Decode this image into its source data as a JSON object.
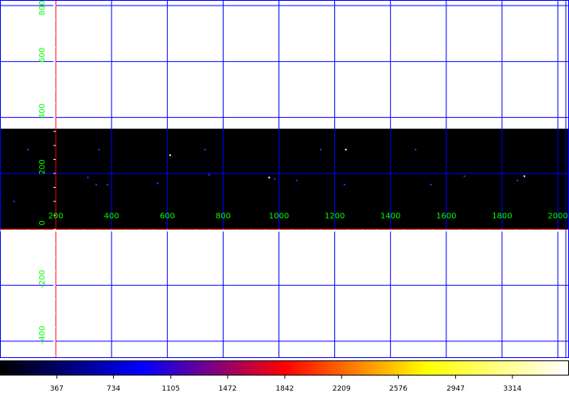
{
  "image": {
    "x_range": [
      0,
      2040
    ],
    "y_range": [
      -460,
      820
    ],
    "data_band": [
      0,
      360
    ]
  },
  "x_grid_values": [
    0,
    200,
    400,
    600,
    800,
    1000,
    1200,
    1400,
    1600,
    1800,
    2000
  ],
  "x_tick_labels": [
    "200",
    "400",
    "600",
    "800",
    "1000",
    "1200",
    "1400",
    "1600",
    "1800",
    "2000"
  ],
  "y_grid_values": [
    -400,
    -200,
    0,
    200,
    400,
    600,
    800
  ],
  "y_tick_labels": [
    "-400",
    "-200",
    "0",
    "200",
    "400",
    "600",
    "800"
  ],
  "stars": [
    {
      "x": 50,
      "y": 100,
      "v": 800
    },
    {
      "x": 100,
      "y": 285,
      "v": 900
    },
    {
      "x": 315,
      "y": 185,
      "v": 700
    },
    {
      "x": 345,
      "y": 160,
      "v": 900
    },
    {
      "x": 385,
      "y": 160,
      "v": 700
    },
    {
      "x": 355,
      "y": 285,
      "v": 500
    },
    {
      "x": 565,
      "y": 165,
      "v": 600
    },
    {
      "x": 610,
      "y": 265,
      "v": 2800
    },
    {
      "x": 735,
      "y": 285,
      "v": 400
    },
    {
      "x": 750,
      "y": 195,
      "v": 500
    },
    {
      "x": 965,
      "y": 185,
      "v": 3500
    },
    {
      "x": 985,
      "y": 180,
      "v": 500
    },
    {
      "x": 1065,
      "y": 175,
      "v": 400
    },
    {
      "x": 1150,
      "y": 285,
      "v": 400
    },
    {
      "x": 1235,
      "y": 160,
      "v": 500
    },
    {
      "x": 1240,
      "y": 285,
      "v": 2600
    },
    {
      "x": 1490,
      "y": 285,
      "v": 700
    },
    {
      "x": 1545,
      "y": 160,
      "v": 400
    },
    {
      "x": 1665,
      "y": 190,
      "v": 900
    },
    {
      "x": 1855,
      "y": 175,
      "v": 700
    },
    {
      "x": 1880,
      "y": 190,
      "v": 2800
    }
  ],
  "colorbar": {
    "ticks": [
      "367",
      "734",
      "1105",
      "1472",
      "1842",
      "2209",
      "2576",
      "2947",
      "3314"
    ],
    "max": 3680,
    "stops": [
      "#000000",
      "#0000ff",
      "#ff0000",
      "#ffff00",
      "#ffffff"
    ]
  },
  "colors": {
    "grid": "#0000ff",
    "axis": "#ff0000",
    "label": "#00ff00",
    "background": "#000000"
  }
}
